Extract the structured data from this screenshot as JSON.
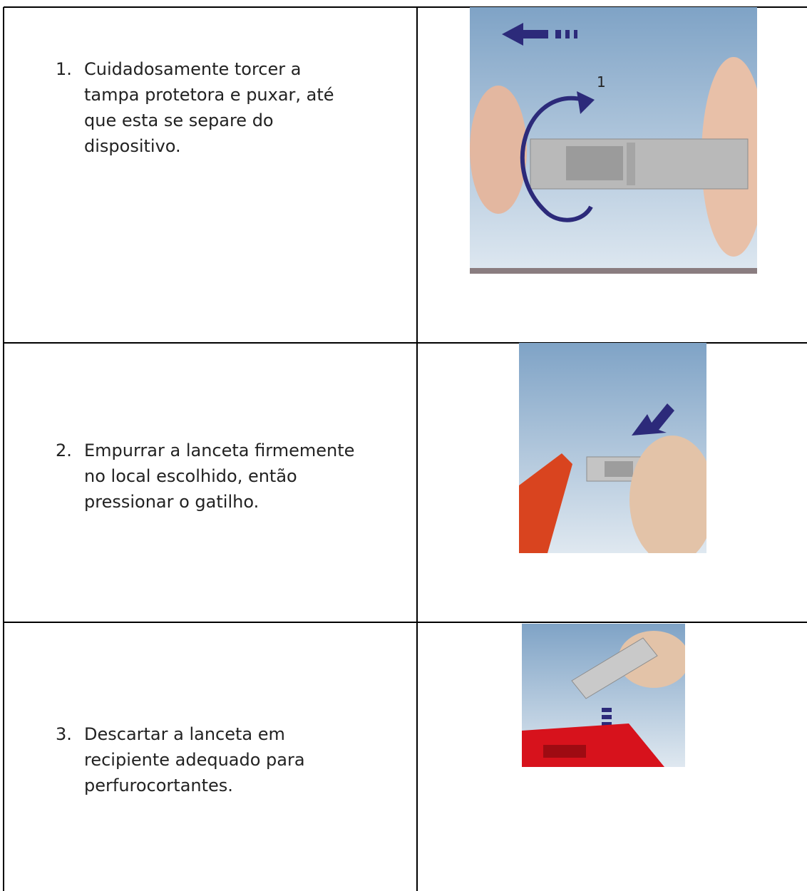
{
  "steps": [
    {
      "number": "1.",
      "lines": [
        "Cuidadosamente torcer a",
        "tampa protetora e puxar, até",
        "que esta se separe do",
        "dispositivo."
      ]
    },
    {
      "number": "2.",
      "lines": [
        "Empurrar a lanceta firmemente",
        "no local escolhido, então",
        "pressionar o gatilho."
      ]
    },
    {
      "number": "3.",
      "lines": [
        "Descartar a lanceta em",
        "recipiente adequado para",
        "perfurocortantes."
      ]
    }
  ]
}
